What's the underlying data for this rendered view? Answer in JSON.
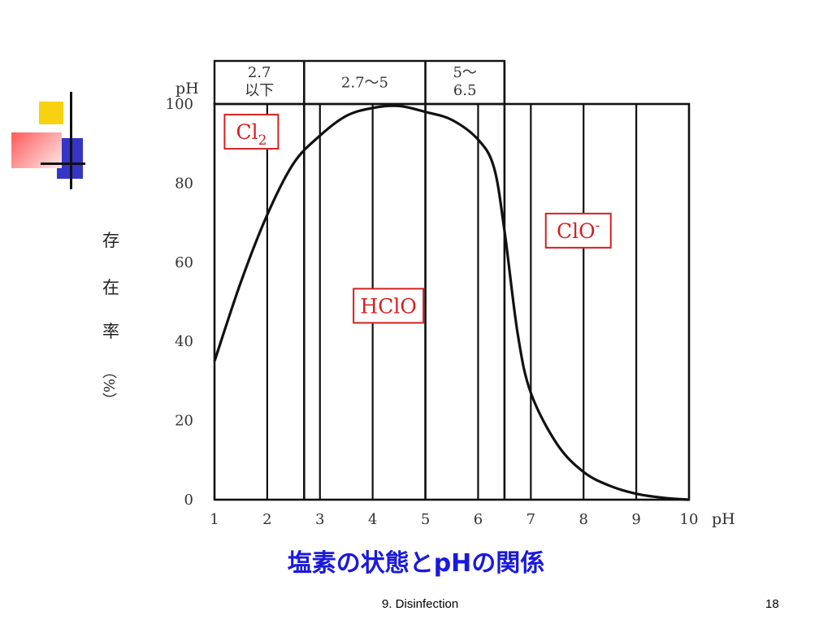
{
  "slide": {
    "caption": "塩素の状態とpHの関係",
    "footer": "9. Disinfection",
    "page_number": "18",
    "accent_colors": {
      "yellow": "#f8d210",
      "blue": "#3535c8",
      "red": "#ff5a5a",
      "caption": "#1a1adc",
      "label_red": "#d42020"
    }
  },
  "chart_data": {
    "type": "line",
    "x_unit_label": "pH",
    "y_label_chars": [
      "存",
      "在",
      "率",
      "（%）"
    ],
    "x_ticks": [
      "1",
      "2",
      "3",
      "4",
      "5",
      "6",
      "7",
      "8",
      "9",
      "10"
    ],
    "y_ticks": [
      "0",
      "20",
      "40",
      "60",
      "80",
      "100"
    ],
    "xlim": [
      1,
      10
    ],
    "ylim": [
      0,
      100
    ],
    "grid": true,
    "header_row_label": "pH",
    "ph_ranges": [
      {
        "label_lines": [
          "2.7",
          "以下"
        ],
        "from": 1,
        "to": 2.7
      },
      {
        "label_lines": [
          "2.7～5"
        ],
        "from": 2.7,
        "to": 5
      },
      {
        "label_lines": [
          "5～",
          "6.5"
        ],
        "from": 5,
        "to": 6.5
      }
    ],
    "range_boundaries": [
      2.7,
      5,
      6.5
    ],
    "species_labels": [
      {
        "text": "Cl",
        "sub": "2",
        "sup": "",
        "x": 1.7,
        "y": 93
      },
      {
        "text": "HClO",
        "sub": "",
        "sup": "",
        "x": 4.3,
        "y": 49
      },
      {
        "text": "ClO",
        "sub": "",
        "sup": "-",
        "x": 7.9,
        "y": 68
      }
    ],
    "series": [
      {
        "values": [
          [
            1,
            35
          ],
          [
            1.5,
            55
          ],
          [
            2,
            72
          ],
          [
            2.5,
            85
          ],
          [
            3,
            92
          ],
          [
            3.5,
            97
          ],
          [
            4,
            99
          ],
          [
            4.5,
            99.5
          ],
          [
            5,
            98
          ],
          [
            5.5,
            96
          ],
          [
            6,
            91
          ],
          [
            6.3,
            84
          ],
          [
            6.5,
            68
          ],
          [
            6.75,
            42
          ],
          [
            7,
            27
          ],
          [
            7.5,
            14
          ],
          [
            8,
            7
          ],
          [
            8.5,
            3.5
          ],
          [
            9,
            1.5
          ],
          [
            9.5,
            0.5
          ],
          [
            10,
            0
          ]
        ]
      }
    ]
  }
}
